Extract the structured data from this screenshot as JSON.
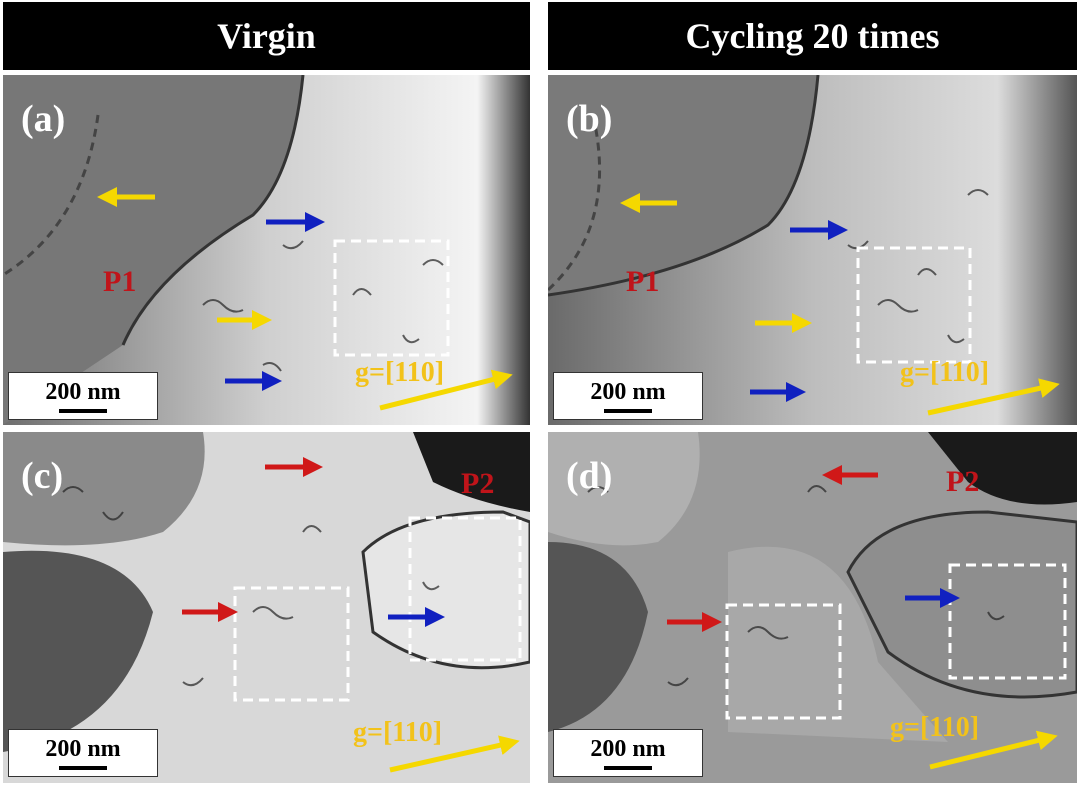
{
  "headers": {
    "left": "Virgin",
    "right": "Cycling 20 times"
  },
  "panels": {
    "a": {
      "label": "(a)",
      "phase": "P1",
      "g": "g=[110]",
      "scale": "200 nm"
    },
    "b": {
      "label": "(b)",
      "phase": "P1",
      "g": "g=[110]",
      "scale": "200 nm"
    },
    "c": {
      "label": "(c)",
      "phase": "P2",
      "g": "g=[110]",
      "scale": "200 nm"
    },
    "d": {
      "label": "(d)",
      "phase": "P2",
      "g": "g=[110]",
      "scale": "200 nm"
    }
  },
  "colors": {
    "yellow": "#f5d800",
    "blue": "#1020c0",
    "red": "#d01818",
    "phase_text": "#c0141a"
  }
}
